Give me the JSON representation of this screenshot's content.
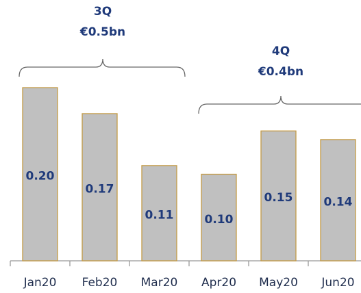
{
  "chart_data": {
    "type": "bar",
    "categories": [
      "Jan20",
      "Feb20",
      "Mar20",
      "Apr20",
      "May20",
      "Jun20"
    ],
    "values": [
      0.2,
      0.17,
      0.11,
      0.1,
      0.15,
      0.14
    ],
    "value_labels": [
      "0.20",
      "0.17",
      "0.11",
      "0.10",
      "0.15",
      "0.14"
    ],
    "color": "#c0c0c0",
    "ylim": [
      0,
      0.24
    ],
    "annotations": [
      {
        "label": "3Q",
        "value": "€0.5bn"
      },
      {
        "label": "4Q",
        "value": "€0.4bn"
      }
    ]
  }
}
